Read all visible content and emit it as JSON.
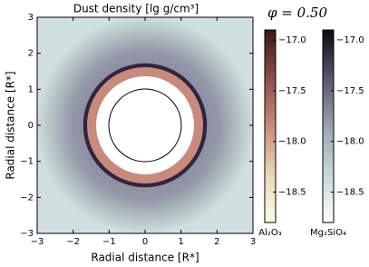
{
  "chart_data": {
    "type": "image",
    "title": "Dust density [lg g/cm³]",
    "annotation": "φ = 0.50",
    "x_label": "Radial distance [R*]",
    "y_label": "Radial distance [R*]",
    "xlim": [
      -3,
      3
    ],
    "ylim": [
      -3,
      3
    ],
    "xticks": [
      {
        "value": -3,
        "label": "−3"
      },
      {
        "value": -2,
        "label": "−2"
      },
      {
        "value": -1,
        "label": "−1"
      },
      0,
      1,
      2,
      3
    ],
    "yticks": [
      {
        "value": -3,
        "label": "−3"
      },
      {
        "value": -2,
        "label": "−2"
      },
      {
        "value": -1,
        "label": "−1"
      },
      0,
      1,
      2,
      3
    ],
    "colorbars": [
      {
        "label": "Al₂O₃",
        "clim": [
          -18.8,
          -16.9
        ],
        "colors": [
          "#fdfde2",
          "#e8d8b8",
          "#c98a7c",
          "#8a5048",
          "#3a1a10"
        ],
        "ticks": [
          {
            "value": -18.5,
            "label": "−18.5"
          },
          {
            "value": -18,
            "label": "−18.0"
          },
          {
            "value": -17.5,
            "label": "−17.5"
          },
          {
            "value": -17,
            "label": "−17.0"
          }
        ]
      },
      {
        "label": "Mg₂SiO₄",
        "clim": [
          -18.8,
          -16.9
        ],
        "colors": [
          "#ffffff",
          "#c6d8d6",
          "#9aa3b0",
          "#5a5570",
          "#0a0a10"
        ],
        "ticks": [
          {
            "value": -18.5,
            "label": "−18.5"
          },
          {
            "value": -18,
            "label": "−18.0"
          },
          {
            "value": -17.5,
            "label": "−17.5"
          },
          {
            "value": -17,
            "label": "−17.0"
          }
        ]
      }
    ]
  }
}
